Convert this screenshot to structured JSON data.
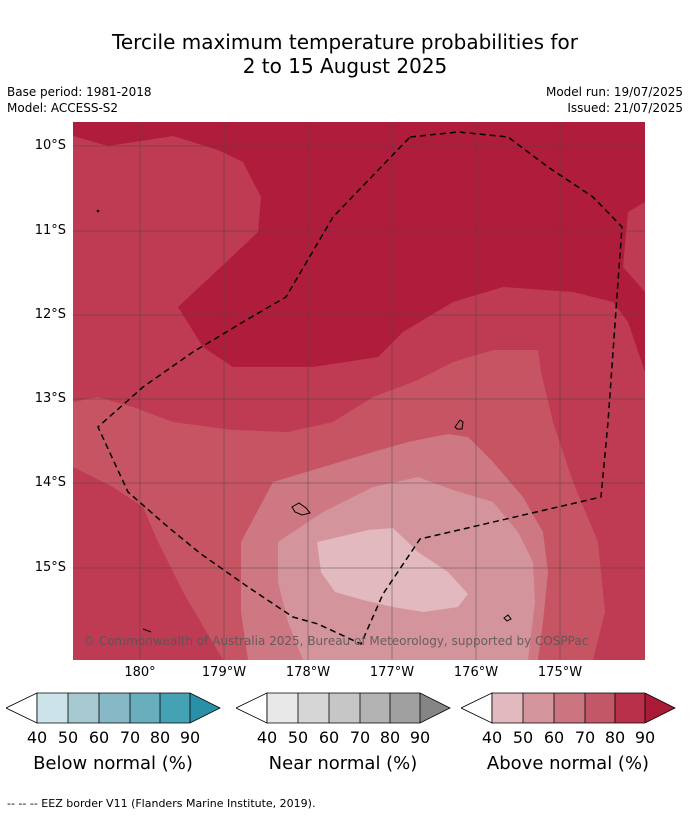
{
  "title_line1": "Tercile maximum temperature probabilities for",
  "title_line2": "2 to 15 August 2025",
  "base_period": "Base period: 1981-2018",
  "model": "Model: ACCESS-S2",
  "model_run": "Model run: 19/07/2025",
  "issued": "Issued: 21/07/2025",
  "lat_labels": [
    "10°S",
    "11°S",
    "12°S",
    "13°S",
    "14°S",
    "15°S"
  ],
  "lon_labels": [
    "180°",
    "179°W",
    "178°W",
    "177°W",
    "176°W",
    "175°W"
  ],
  "copyright": "© Commonwealth of Australia 2025, Bureau of Meteorology, supported by COSPPac",
  "legends": [
    {
      "title": "Below normal (%)",
      "ticks": [
        "40",
        "50",
        "60",
        "70",
        "80",
        "90"
      ],
      "colors": [
        "#ffffff",
        "#cde3ea",
        "#a7c9d1",
        "#86b8c5",
        "#69aebd",
        "#44a2b4",
        "#2990a8"
      ]
    },
    {
      "title": "Near normal (%)",
      "ticks": [
        "40",
        "50",
        "60",
        "70",
        "80",
        "90"
      ],
      "colors": [
        "#ffffff",
        "#e7e7e7",
        "#d6d6d6",
        "#c6c6c6",
        "#b3b3b3",
        "#a0a0a0",
        "#858585"
      ]
    },
    {
      "title": "Above normal (%)",
      "ticks": [
        "40",
        "50",
        "60",
        "70",
        "80",
        "90"
      ],
      "colors": [
        "#ffffff",
        "#e1b9be",
        "#d4959d",
        "#cb7580",
        "#c25867",
        "#b9304a",
        "#ab1b38"
      ]
    }
  ],
  "footnote": "--  --  -- EEZ border V11 (Flanders Marine Institute, 2019)."
}
